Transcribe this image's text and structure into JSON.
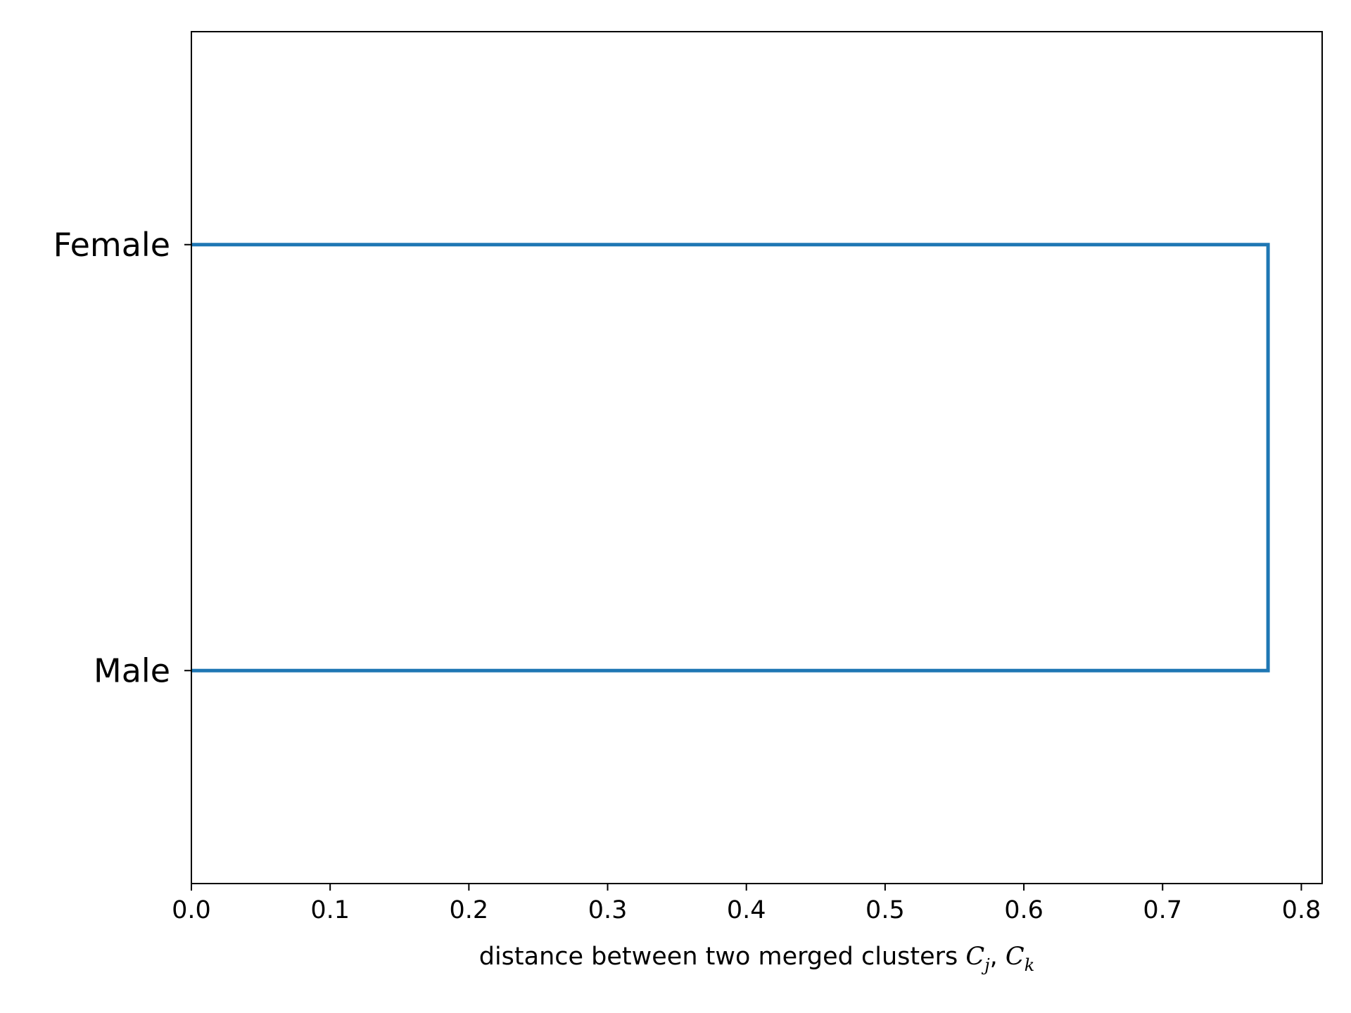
{
  "chart_data": {
    "type": "dendrogram",
    "orientation": "horizontal",
    "leaves": [
      "Female",
      "Male"
    ],
    "merges": [
      {
        "left": "Female",
        "right": "Male",
        "distance": 0.776
      }
    ],
    "xlim": [
      0.0,
      0.815
    ],
    "xticks": [
      "0.0",
      "0.1",
      "0.2",
      "0.3",
      "0.4",
      "0.5",
      "0.6",
      "0.7",
      "0.8"
    ],
    "xlabel_text": "distance between two merged clusters ",
    "xlabel_math": {
      "c1": "C",
      "s1": "j",
      "sep": ", ",
      "c2": "C",
      "s2": "k"
    },
    "line_color": "#1f77b4",
    "grid": false
  }
}
